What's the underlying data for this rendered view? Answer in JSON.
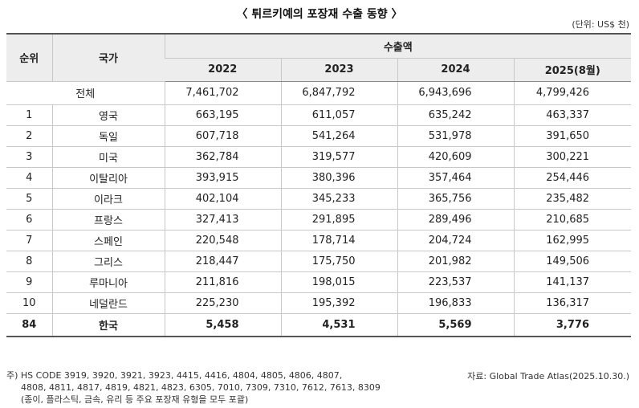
{
  "title": "〈 튀르키예의 포장재 수출 동향 〉",
  "unit": "(단위: US$ 천)",
  "table": {
    "header_rank": "순위",
    "header_country": "국가",
    "header_group": "수출액",
    "years": [
      "2022",
      "2023",
      "2024",
      "2025(8월)"
    ],
    "total": {
      "label": "전체",
      "values": [
        "7,461,702",
        "6,847,792",
        "6,943,696",
        "4,799,426"
      ]
    },
    "rows": [
      {
        "rank": "1",
        "country": "영국",
        "values": [
          "663,195",
          "611,057",
          "635,242",
          "463,337"
        ]
      },
      {
        "rank": "2",
        "country": "독일",
        "values": [
          "607,718",
          "541,264",
          "531,978",
          "391,650"
        ]
      },
      {
        "rank": "3",
        "country": "미국",
        "values": [
          "362,784",
          "319,577",
          "420,609",
          "300,221"
        ]
      },
      {
        "rank": "4",
        "country": "이탈리아",
        "values": [
          "393,915",
          "380,396",
          "357,464",
          "254,446"
        ]
      },
      {
        "rank": "5",
        "country": "이라크",
        "values": [
          "402,104",
          "345,233",
          "365,756",
          "235,482"
        ]
      },
      {
        "rank": "6",
        "country": "프랑스",
        "values": [
          "327,413",
          "291,895",
          "289,496",
          "210,685"
        ]
      },
      {
        "rank": "7",
        "country": "스페인",
        "values": [
          "220,548",
          "178,714",
          "204,724",
          "162,995"
        ]
      },
      {
        "rank": "8",
        "country": "그리스",
        "values": [
          "218,447",
          "175,750",
          "201,982",
          "149,506"
        ]
      },
      {
        "rank": "9",
        "country": "루마니아",
        "values": [
          "211,816",
          "198,015",
          "223,537",
          "141,137"
        ]
      },
      {
        "rank": "10",
        "country": "네덜란드",
        "values": [
          "225,230",
          "195,392",
          "196,833",
          "136,317"
        ]
      }
    ],
    "korea": {
      "rank": "84",
      "country": "한국",
      "values": [
        "5,458",
        "4,531",
        "5,569",
        "3,776"
      ]
    }
  },
  "note": {
    "line1": "주) HS CODE 3919, 3920, 3921, 3923, 4415, 4416, 4804, 4805, 4806, 4807,",
    "line2": "4808, 4811, 4817, 4819, 4821, 4823, 6305, 7010, 7309, 7310, 7612, 7613, 8309",
    "line3": "(종이, 플라스틱, 금속, 유리 등 주요 포장재 유형을 모두 포괄)"
  },
  "source": "자료: Global Trade Atlas(2025.10.30.)"
}
